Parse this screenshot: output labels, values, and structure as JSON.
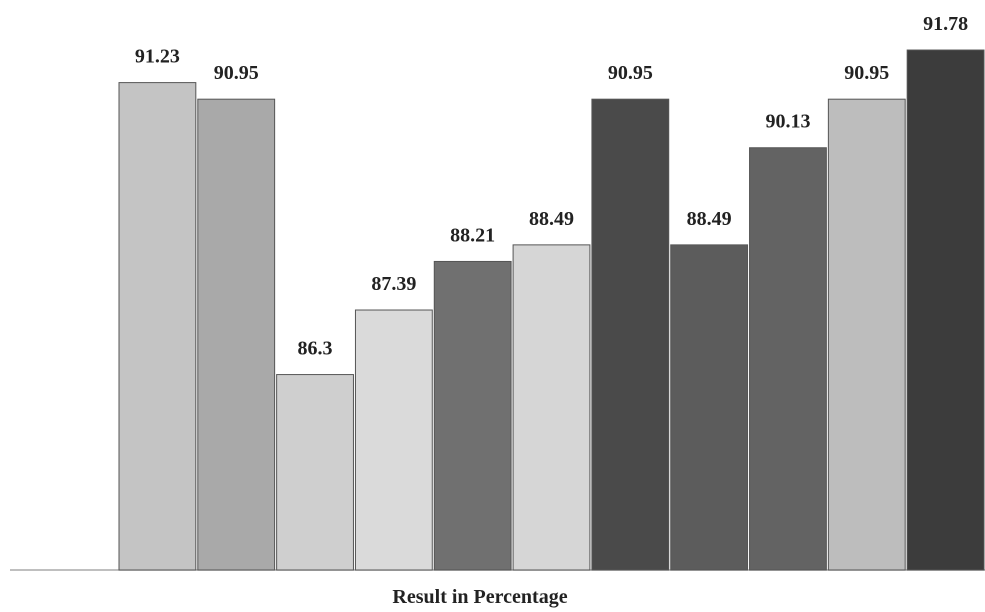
{
  "chart_data": {
    "type": "bar",
    "x_label": "Result in Percentage",
    "categories": [
      null,
      null,
      null,
      null,
      null,
      null,
      null,
      null,
      null,
      null,
      null
    ],
    "values": [
      91.23,
      90.95,
      86.3,
      87.39,
      88.21,
      88.49,
      90.95,
      88.49,
      90.13,
      90.95,
      91.78
    ],
    "colors": [
      "#c4c4c4",
      "#a9a9a9",
      "#cfcfcf",
      "#dadada",
      "#707070",
      "#d6d6d6",
      "#4a4a4a",
      "#5c5c5c",
      "#636363",
      "#bdbdbd",
      "#3c3c3c"
    ],
    "ylim": [
      83,
      92
    ]
  }
}
